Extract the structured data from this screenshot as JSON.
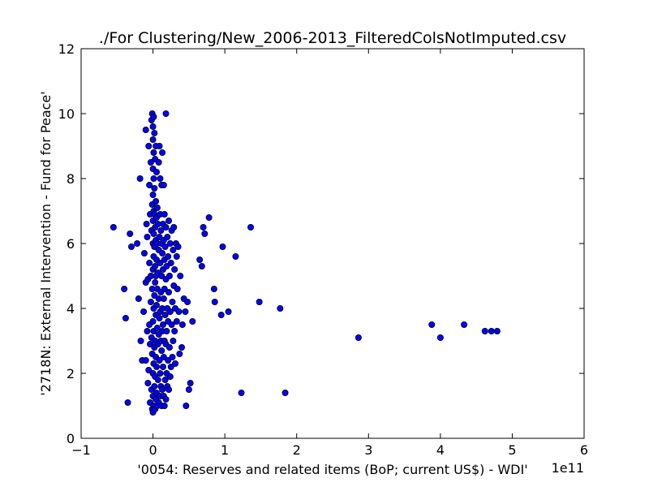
{
  "chart_data": {
    "type": "scatter",
    "title": "./For Clustering/New_2006-2013_FilteredColsNotImputed.csv",
    "xlabel": "'0054: Reserves and related items  (BoP; current US$) - WDI'",
    "ylabel": "'2718N: External Intervention - Fund for Peace'",
    "x_offset_label": "1e11",
    "xlim": [
      -1,
      6
    ],
    "ylim": [
      0,
      12
    ],
    "xticks": [
      "−1",
      "0",
      "1",
      "2",
      "3",
      "4",
      "5",
      "6"
    ],
    "yticks": [
      "0",
      "2",
      "4",
      "6",
      "8",
      "10",
      "12"
    ],
    "grid": false,
    "marker_color": "#0000ff",
    "marker_edge_color": "#000000",
    "points": [
      [
        -0.55,
        6.5
      ],
      [
        -0.4,
        4.6
      ],
      [
        -0.38,
        3.7
      ],
      [
        -0.35,
        1.1
      ],
      [
        -0.32,
        6.3
      ],
      [
        -0.3,
        5.9
      ],
      [
        -0.22,
        6.0
      ],
      [
        -0.2,
        4.3
      ],
      [
        -0.18,
        8.0
      ],
      [
        -0.17,
        3.0
      ],
      [
        -0.15,
        2.4
      ],
      [
        -0.13,
        3.9
      ],
      [
        -0.12,
        5.7
      ],
      [
        -0.1,
        4.8
      ],
      [
        -0.1,
        2.4
      ],
      [
        -0.1,
        9.5
      ],
      [
        -0.09,
        6.6
      ],
      [
        -0.08,
        6.2
      ],
      [
        -0.08,
        3.3
      ],
      [
        -0.07,
        1.7
      ],
      [
        -0.07,
        4.9
      ],
      [
        -0.06,
        9.0
      ],
      [
        -0.06,
        2.1
      ],
      [
        -0.05,
        5.4
      ],
      [
        -0.05,
        3.5
      ],
      [
        -0.05,
        7.8
      ],
      [
        -0.04,
        1.1
      ],
      [
        -0.04,
        6.9
      ],
      [
        -0.04,
        2.9
      ],
      [
        -0.03,
        4.2
      ],
      [
        -0.03,
        5.0
      ],
      [
        -0.03,
        8.5
      ],
      [
        -0.02,
        1.5
      ],
      [
        -0.02,
        3.1
      ],
      [
        -0.02,
        6.4
      ],
      [
        -0.02,
        9.8
      ],
      [
        -0.01,
        0.9
      ],
      [
        -0.01,
        2.6
      ],
      [
        -0.01,
        4.6
      ],
      [
        -0.01,
        7.2
      ],
      [
        -0.01,
        10.0
      ],
      [
        0.0,
        0.8
      ],
      [
        0.0,
        1.3
      ],
      [
        0.0,
        2.0
      ],
      [
        0.0,
        3.6
      ],
      [
        0.0,
        5.2
      ],
      [
        0.0,
        6.0
      ],
      [
        0.0,
        6.7
      ],
      [
        0.0,
        7.5
      ],
      [
        0.0,
        8.3
      ],
      [
        0.0,
        9.2
      ],
      [
        0.0,
        9.6
      ],
      [
        0.01,
        1.0
      ],
      [
        0.01,
        2.3
      ],
      [
        0.01,
        3.3
      ],
      [
        0.01,
        4.0
      ],
      [
        0.01,
        5.6
      ],
      [
        0.01,
        6.3
      ],
      [
        0.01,
        7.0
      ],
      [
        0.01,
        8.0
      ],
      [
        0.01,
        8.8
      ],
      [
        0.01,
        9.9
      ],
      [
        0.02,
        1.6
      ],
      [
        0.02,
        2.8
      ],
      [
        0.02,
        4.4
      ],
      [
        0.02,
        5.9
      ],
      [
        0.02,
        6.9
      ],
      [
        0.02,
        7.7
      ],
      [
        0.02,
        9.4
      ],
      [
        0.03,
        0.9
      ],
      [
        0.03,
        1.9
      ],
      [
        0.03,
        3.0
      ],
      [
        0.03,
        4.8
      ],
      [
        0.03,
        5.3
      ],
      [
        0.03,
        6.5
      ],
      [
        0.03,
        8.6
      ],
      [
        0.04,
        1.2
      ],
      [
        0.04,
        2.5
      ],
      [
        0.04,
        3.8
      ],
      [
        0.04,
        5.0
      ],
      [
        0.04,
        6.1
      ],
      [
        0.04,
        7.3
      ],
      [
        0.04,
        9.0
      ],
      [
        0.05,
        1.4
      ],
      [
        0.05,
        2.2
      ],
      [
        0.05,
        4.1
      ],
      [
        0.05,
        5.5
      ],
      [
        0.05,
        6.8
      ],
      [
        0.05,
        8.2
      ],
      [
        0.06,
        1.0
      ],
      [
        0.06,
        3.4
      ],
      [
        0.06,
        4.6
      ],
      [
        0.06,
        6.0
      ],
      [
        0.06,
        7.1
      ],
      [
        0.07,
        1.8
      ],
      [
        0.07,
        2.9
      ],
      [
        0.07,
        5.1
      ],
      [
        0.07,
        6.6
      ],
      [
        0.08,
        1.1
      ],
      [
        0.08,
        3.2
      ],
      [
        0.08,
        4.3
      ],
      [
        0.08,
        5.8
      ],
      [
        0.08,
        8.5
      ],
      [
        0.09,
        2.4
      ],
      [
        0.09,
        3.7
      ],
      [
        0.09,
        6.2
      ],
      [
        0.09,
        9.0
      ],
      [
        0.1,
        1.3
      ],
      [
        0.1,
        2.0
      ],
      [
        0.1,
        3.9
      ],
      [
        0.1,
        5.4
      ],
      [
        0.1,
        6.9
      ],
      [
        0.1,
        8.0
      ],
      [
        0.11,
        1.6
      ],
      [
        0.11,
        3.0
      ],
      [
        0.11,
        4.5
      ],
      [
        0.11,
        6.4
      ],
      [
        0.12,
        1.0
      ],
      [
        0.12,
        2.7
      ],
      [
        0.12,
        5.0
      ],
      [
        0.12,
        6.0
      ],
      [
        0.12,
        7.8
      ],
      [
        0.13,
        1.5
      ],
      [
        0.13,
        3.3
      ],
      [
        0.13,
        4.0
      ],
      [
        0.13,
        5.7
      ],
      [
        0.13,
        8.8
      ],
      [
        0.14,
        2.2
      ],
      [
        0.14,
        3.5
      ],
      [
        0.14,
        5.2
      ],
      [
        0.14,
        6.6
      ],
      [
        0.15,
        1.3
      ],
      [
        0.15,
        2.5
      ],
      [
        0.15,
        4.3
      ],
      [
        0.15,
        6.1
      ],
      [
        0.15,
        7.8
      ],
      [
        0.16,
        1.0
      ],
      [
        0.16,
        3.0
      ],
      [
        0.16,
        4.6
      ],
      [
        0.16,
        5.5
      ],
      [
        0.16,
        6.9
      ],
      [
        0.17,
        1.8
      ],
      [
        0.17,
        3.8
      ],
      [
        0.17,
        5.9
      ],
      [
        0.18,
        1.2
      ],
      [
        0.18,
        2.9
      ],
      [
        0.18,
        4.9
      ],
      [
        0.18,
        6.5
      ],
      [
        0.18,
        10.0
      ],
      [
        0.19,
        2.0
      ],
      [
        0.19,
        3.3
      ],
      [
        0.19,
        5.3
      ],
      [
        0.2,
        1.6
      ],
      [
        0.2,
        4.0
      ],
      [
        0.2,
        6.2
      ],
      [
        0.21,
        2.4
      ],
      [
        0.21,
        3.6
      ],
      [
        0.21,
        5.6
      ],
      [
        0.22,
        1.5
      ],
      [
        0.22,
        4.5
      ],
      [
        0.22,
        6.7
      ],
      [
        0.23,
        2.8
      ],
      [
        0.23,
        5.0
      ],
      [
        0.24,
        1.9
      ],
      [
        0.24,
        3.9
      ],
      [
        0.24,
        6.0
      ],
      [
        0.25,
        2.2
      ],
      [
        0.25,
        5.4
      ],
      [
        0.26,
        3.5
      ],
      [
        0.26,
        6.4
      ],
      [
        0.27,
        2.5
      ],
      [
        0.27,
        4.2
      ],
      [
        0.28,
        3.0
      ],
      [
        0.28,
        5.8
      ],
      [
        0.29,
        4.7
      ],
      [
        0.29,
        6.5
      ],
      [
        0.3,
        3.3
      ],
      [
        0.3,
        5.2
      ],
      [
        0.31,
        2.3
      ],
      [
        0.31,
        4.0
      ],
      [
        0.32,
        6.0
      ],
      [
        0.33,
        3.6
      ],
      [
        0.33,
        5.6
      ],
      [
        0.34,
        4.6
      ],
      [
        0.35,
        5.9
      ],
      [
        0.36,
        3.9
      ],
      [
        0.37,
        2.6
      ],
      [
        0.38,
        5.0
      ],
      [
        0.4,
        2.8
      ],
      [
        0.41,
        3.5
      ],
      [
        0.43,
        4.3
      ],
      [
        0.45,
        3.9
      ],
      [
        0.46,
        1.0
      ],
      [
        0.48,
        4.2
      ],
      [
        0.5,
        1.5
      ],
      [
        0.52,
        1.7
      ],
      [
        0.55,
        3.6
      ],
      [
        0.65,
        5.5
      ],
      [
        0.68,
        5.3
      ],
      [
        0.7,
        6.5
      ],
      [
        0.72,
        6.3
      ],
      [
        0.78,
        6.8
      ],
      [
        0.85,
        4.6
      ],
      [
        0.86,
        4.2
      ],
      [
        0.95,
        3.8
      ],
      [
        0.97,
        5.9
      ],
      [
        1.05,
        3.9
      ],
      [
        1.15,
        5.6
      ],
      [
        1.23,
        1.4
      ],
      [
        1.36,
        6.5
      ],
      [
        1.48,
        4.2
      ],
      [
        1.77,
        4.0
      ],
      [
        1.84,
        1.4
      ],
      [
        2.86,
        3.1
      ],
      [
        3.88,
        3.5
      ],
      [
        4.0,
        3.1
      ],
      [
        4.33,
        3.5
      ],
      [
        4.62,
        3.3
      ],
      [
        4.71,
        3.3
      ],
      [
        4.79,
        3.3
      ]
    ]
  }
}
